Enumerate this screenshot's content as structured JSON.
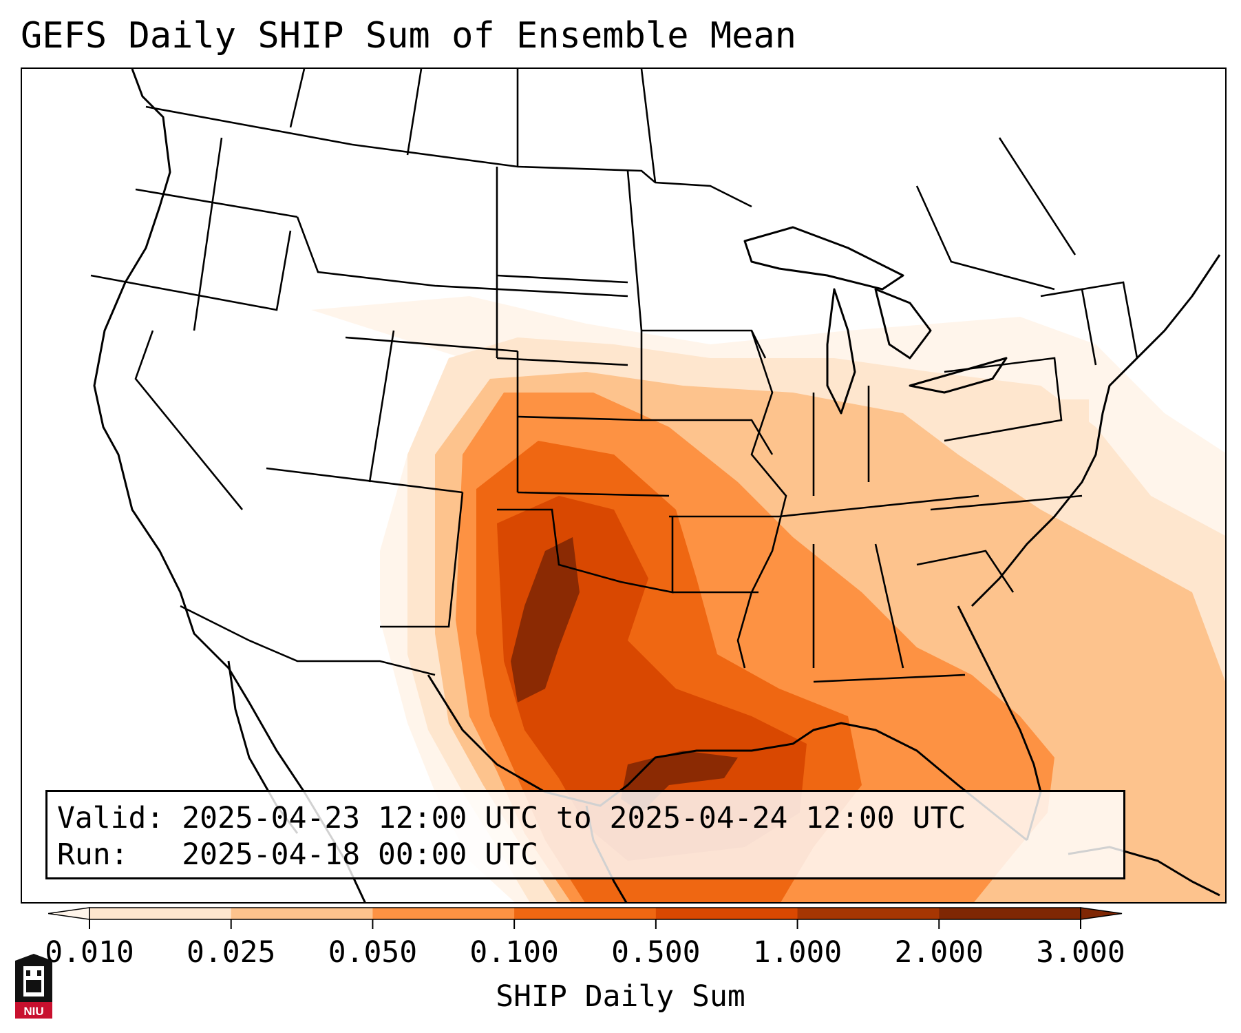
{
  "title": "GEFS Daily SHIP Sum of Ensemble Mean",
  "info": {
    "valid_label": "Valid:",
    "valid_value": "2025-04-23 12:00 UTC to 2025-04-24 12:00 UTC",
    "run_label": "Run:",
    "run_value": "2025-04-18 00:00 UTC"
  },
  "colorbar": {
    "title": "SHIP Daily Sum",
    "ticks": [
      "0.010",
      "0.025",
      "0.050",
      "0.100",
      "0.500",
      "1.000",
      "2.000",
      "3.000"
    ],
    "colors": [
      "#fff5eb",
      "#fee6ce",
      "#fdc38d",
      "#fd9243",
      "#ef6712",
      "#d94801",
      "#a63603",
      "#7f2704"
    ]
  },
  "logo": {
    "text": "NIU"
  }
}
